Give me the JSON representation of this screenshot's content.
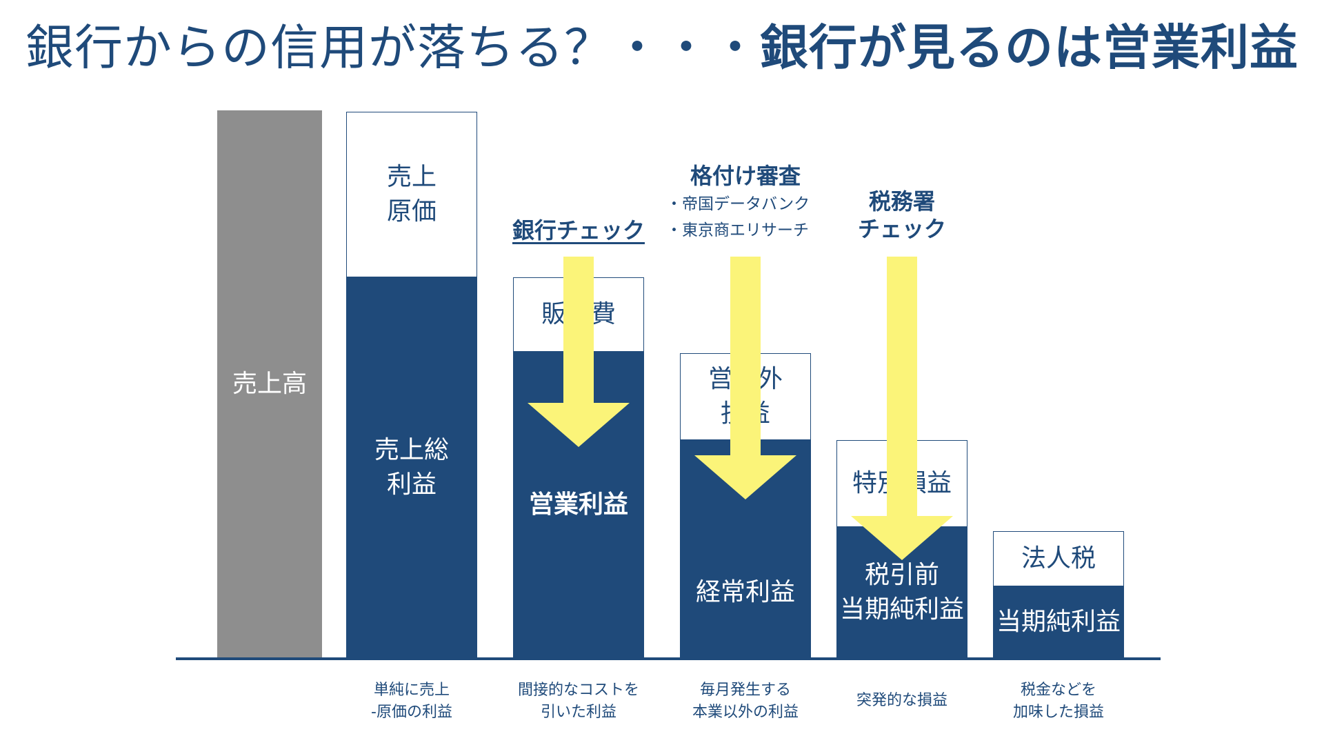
{
  "title": {
    "lead": "銀行からの信用が落ちる？・・・",
    "emphasis": "銀行が見るのは営業利益"
  },
  "bars": {
    "sales": {
      "label": "売上高"
    },
    "gross": {
      "top": "売上\n原価",
      "bottom": "売上総\n利益"
    },
    "operating": {
      "top": "販管費",
      "bottom": "営業利益"
    },
    "ordinary": {
      "top": "営業外\n損益",
      "bottom": "経常利益"
    },
    "pretax": {
      "top": "特別損益",
      "bottom": "税引前\n当期純利益"
    },
    "net": {
      "top": "法人税",
      "bottom": "当期純利益"
    }
  },
  "captions": {
    "gross": "単純に売上\n-原価の利益",
    "operating": "間接的なコストを\n引いた利益",
    "ordinary": "毎月発生する\n本業以外の利益",
    "pretax": "突発的な損益",
    "net": "税金などを\n加味した損益"
  },
  "callouts": {
    "bank": {
      "label": "銀行チェック"
    },
    "rating": {
      "title": "格付け審査",
      "items": [
        "・帝国データバンク",
        "・東京商エリサーチ"
      ]
    },
    "tax": {
      "label": "税務署\nチェック"
    }
  },
  "colors": {
    "navy": "#1f4a7a",
    "gray": "#8e8e8e",
    "arrow_yellow": "#fbf479",
    "white": "#ffffff"
  }
}
